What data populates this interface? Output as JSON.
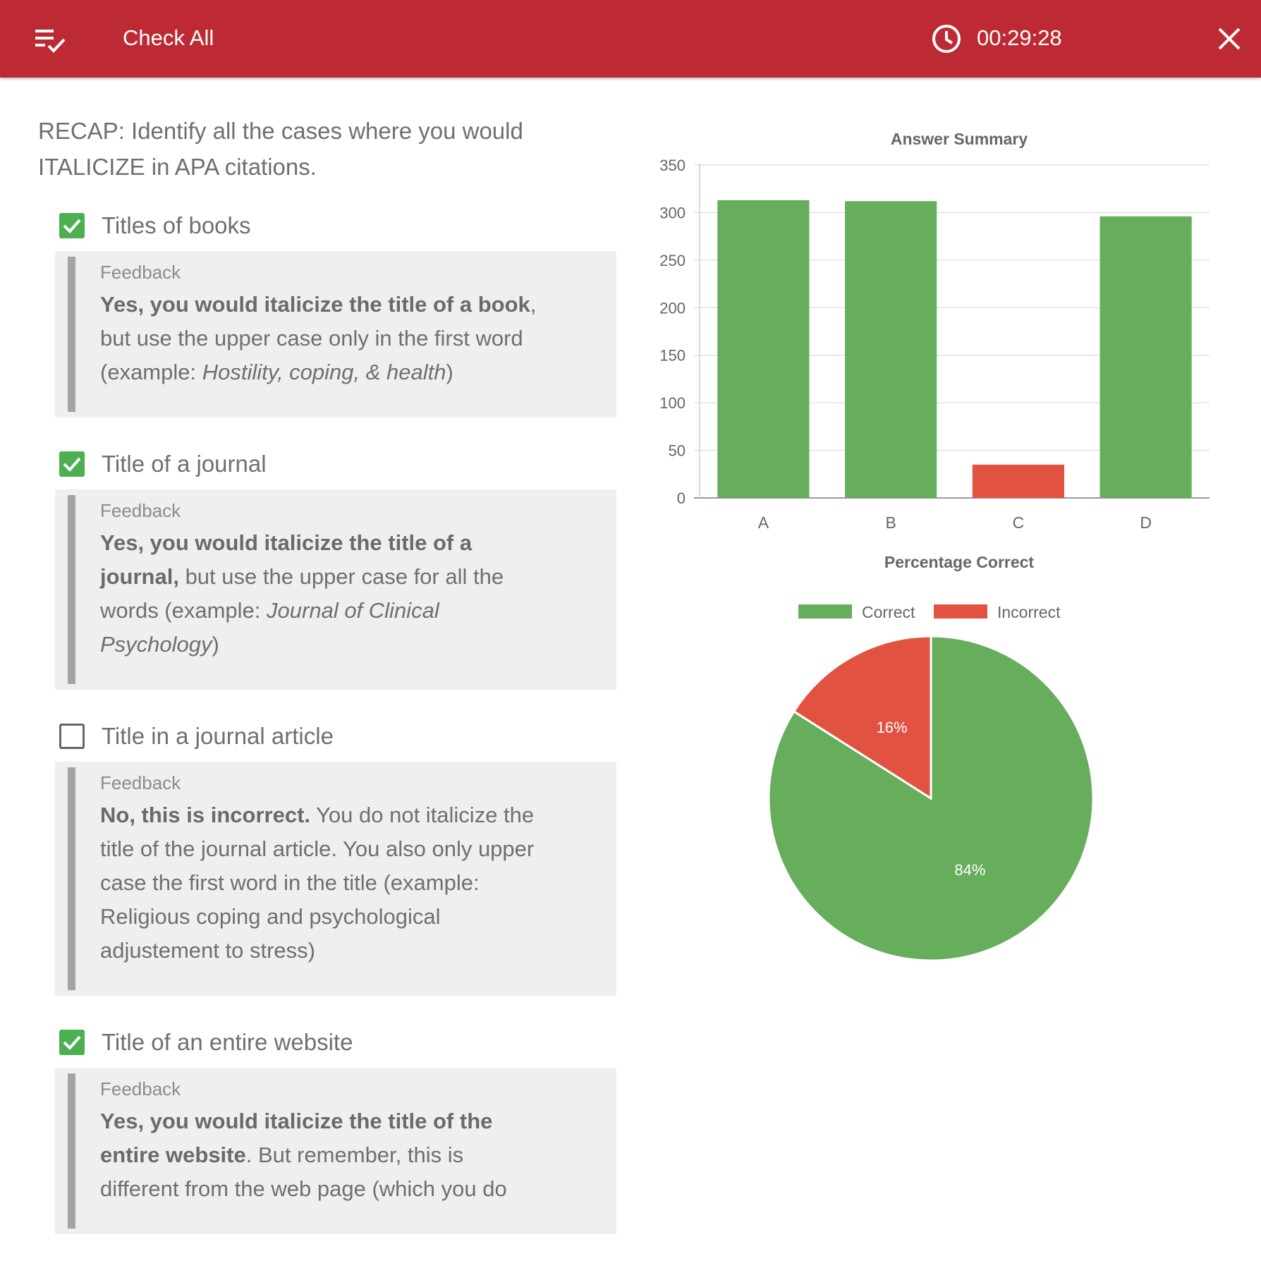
{
  "header": {
    "title": "Check All",
    "timer": "00:29:28"
  },
  "question": {
    "text": "RECAP:  Identify all the cases where you would ITALICIZE in APA citations."
  },
  "options": [
    {
      "label": "Titles of books",
      "checked": true,
      "feedback_title": "Feedback",
      "feedback_parts": [
        {
          "text": "Yes, you would italicize the title of a book",
          "style": "bold"
        },
        {
          "text": ", but use the upper case only in the first word (example: ",
          "style": "normal"
        },
        {
          "text": "Hostility, coping, & health",
          "style": "italic"
        },
        {
          "text": ")",
          "style": "normal"
        }
      ]
    },
    {
      "label": "Title of a journal",
      "checked": true,
      "feedback_title": "Feedback",
      "feedback_parts": [
        {
          "text": "Yes, you would italicize the title of a journal,",
          "style": "bold"
        },
        {
          "text": " but use the upper case for all the words (example: ",
          "style": "normal"
        },
        {
          "text": "Journal of Clinical Psychology",
          "style": "italic"
        },
        {
          "text": ")",
          "style": "normal"
        }
      ]
    },
    {
      "label": "Title in a journal article",
      "checked": false,
      "feedback_title": "Feedback",
      "feedback_parts": [
        {
          "text": "No, this is incorrect.",
          "style": "bold"
        },
        {
          "text": "  You do not italicize the title of the journal article.  You also only upper case the first word in the title (example:  Religious coping and psychological adjustement to stress)",
          "style": "normal"
        }
      ]
    },
    {
      "label": "Title of an entire website",
      "checked": true,
      "feedback_title": "Feedback",
      "feedback_parts": [
        {
          "text": "Yes, you would italicize the title of the entire website",
          "style": "bold"
        },
        {
          "text": ".  But remember, this is different from the web page (which you do",
          "style": "normal"
        }
      ]
    }
  ],
  "chart_data": [
    {
      "type": "bar",
      "title": "Answer Summary",
      "categories": [
        "A",
        "B",
        "C",
        "D"
      ],
      "values": [
        313,
        312,
        35,
        296
      ],
      "bar_colors": [
        "#66ad5c",
        "#66ad5c",
        "#e25241",
        "#66ad5c"
      ],
      "ylim": [
        0,
        350
      ],
      "yticks": [
        0,
        50,
        100,
        150,
        200,
        250,
        300,
        350
      ],
      "grid": true
    },
    {
      "type": "pie",
      "title": "Percentage Correct",
      "legend": [
        "Correct",
        "Incorrect"
      ],
      "legend_position": "top",
      "values": [
        84,
        16
      ],
      "labels": [
        "84%",
        "16%"
      ],
      "colors": [
        "#66ad5c",
        "#e25241"
      ]
    }
  ],
  "colors": {
    "header_bg": "#bd2a33",
    "check_green": "#4caf50",
    "feedback_bg": "#efefef"
  },
  "icons": {
    "menu": "playlist-check-icon",
    "timer": "clock-icon",
    "close": "close-icon"
  }
}
